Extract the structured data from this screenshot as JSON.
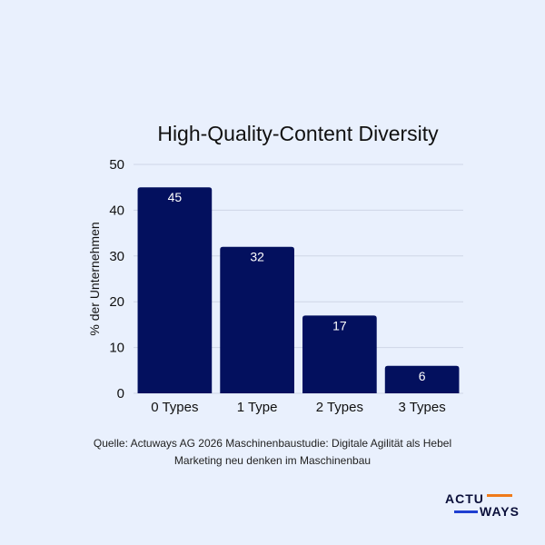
{
  "chart_data": {
    "type": "bar",
    "title": "High-Quality-Content Diversity",
    "ylabel": "% der Unternehmen",
    "xlabel": "",
    "categories": [
      "0 Types",
      "1 Type",
      "2 Types",
      "3 Types"
    ],
    "values": [
      45,
      32,
      17,
      6
    ],
    "ylim": [
      0,
      50
    ],
    "yticks": [
      0,
      10,
      20,
      30,
      40,
      50
    ],
    "grid": true,
    "bar_color": "#03105e"
  },
  "source": {
    "line1": "Quelle: Actuways AG 2026 Maschinenbaustudie: Digitale Agilität als Hebel",
    "line2": "Marketing neu denken im Maschinenbau"
  },
  "logo": {
    "line1": "ACTU",
    "line2": "WAYS",
    "accent_orange": "#f07a1a",
    "accent_blue": "#1f3fd1"
  }
}
